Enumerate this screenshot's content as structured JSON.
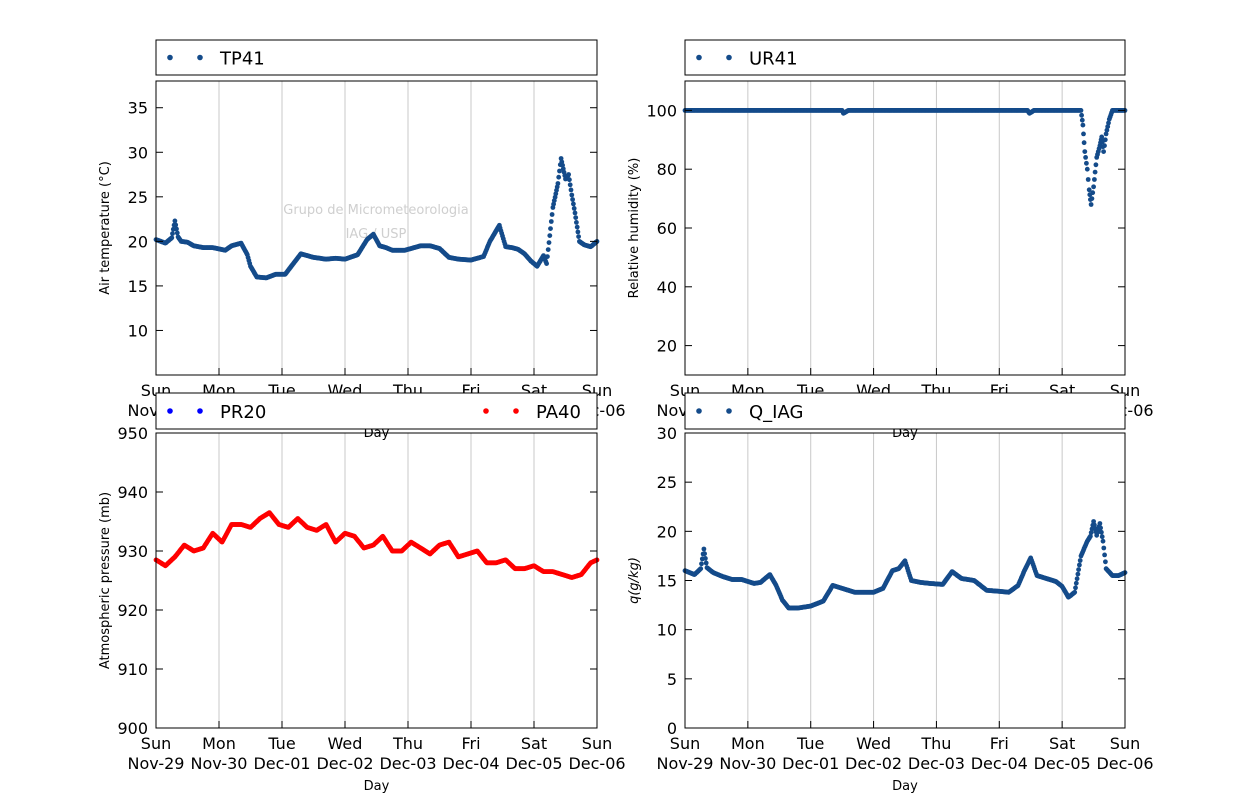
{
  "watermark": {
    "line1": "Grupo de Micrometeorologia",
    "line2": "IAG / USP"
  },
  "colors": {
    "series_blue": "#144b8a",
    "pressure_blue": "#0000ff",
    "pressure_red": "#ff0000",
    "grid": "#c8c8c8"
  },
  "chart_data": [
    {
      "type": "scatter",
      "legend": [
        "TP41"
      ],
      "xlabel": "Day",
      "ylabel": "Air temperature (°C)",
      "xlim": [
        "Nov-29",
        "Dec-06"
      ],
      "ylim": [
        5,
        38
      ],
      "yticks": [
        10,
        15,
        20,
        25,
        30,
        35
      ],
      "xticks_day": [
        "Sun",
        "Mon",
        "Tue",
        "Wed",
        "Thu",
        "Fri",
        "Sat",
        "Sun"
      ],
      "xticks_date": [
        "Nov-29",
        "Nov-30",
        "Dec-01",
        "Dec-02",
        "Dec-03",
        "Dec-04",
        "Dec-05",
        "Dec-06"
      ],
      "grid": "vertical",
      "series": [
        {
          "name": "TP41",
          "color": "#144b8a",
          "x": [
            0,
            0.15,
            0.25,
            0.3,
            0.35,
            0.4,
            0.5,
            0.6,
            0.75,
            0.9,
            1.1,
            1.2,
            1.35,
            1.45,
            1.5,
            1.6,
            1.75,
            1.9,
            2.05,
            2.3,
            2.5,
            2.7,
            2.85,
            3.0,
            3.2,
            3.35,
            3.45,
            3.55,
            3.65,
            3.75,
            3.95,
            4.2,
            4.35,
            4.5,
            4.65,
            4.8,
            5.0,
            5.2,
            5.3,
            5.45,
            5.55,
            5.65,
            5.75,
            5.85,
            5.95,
            6.05,
            6.15,
            6.2,
            6.3,
            6.38,
            6.43,
            6.5,
            6.55,
            6.6,
            6.65,
            6.72,
            6.8,
            6.9,
            7.0
          ],
          "y": [
            20.2,
            19.8,
            20.4,
            22.3,
            20.5,
            20.0,
            19.9,
            19.5,
            19.3,
            19.3,
            19.0,
            19.5,
            19.8,
            18.5,
            17.2,
            16.0,
            15.9,
            16.3,
            16.3,
            18.6,
            18.2,
            18.0,
            18.1,
            18.0,
            18.5,
            20.2,
            20.8,
            19.5,
            19.3,
            19.0,
            19.0,
            19.5,
            19.5,
            19.2,
            18.2,
            18.0,
            17.9,
            18.3,
            20.0,
            21.8,
            19.4,
            19.3,
            19.1,
            18.6,
            17.8,
            17.2,
            18.4,
            17.5,
            23.8,
            26.5,
            29.3,
            27.0,
            27.5,
            25.2,
            23.2,
            20.0,
            19.6,
            19.4,
            20.0
          ]
        }
      ]
    },
    {
      "type": "scatter",
      "legend": [
        "UR41"
      ],
      "xlabel": "Day",
      "ylabel": "Relative humidity (%)",
      "xlim": [
        "Nov-29",
        "Dec-06"
      ],
      "ylim": [
        10,
        110
      ],
      "yticks": [
        20,
        40,
        60,
        80,
        100
      ],
      "xticks_day": [
        "Sun",
        "Mon",
        "Tue",
        "Wed",
        "Thu",
        "Fri",
        "Sat",
        "Sun"
      ],
      "xticks_date": [
        "Nov-29",
        "Nov-30",
        "Dec-01",
        "Dec-02",
        "Dec-03",
        "Dec-04",
        "Dec-05",
        "Dec-06"
      ],
      "grid": "vertical",
      "series": [
        {
          "name": "UR41",
          "color": "#144b8a",
          "x": [
            0,
            1.0,
            2.0,
            2.5,
            2.52,
            2.6,
            3.0,
            4.0,
            5.0,
            5.45,
            5.48,
            5.55,
            6.0,
            6.3,
            6.33,
            6.36,
            6.4,
            6.43,
            6.46,
            6.5,
            6.55,
            6.6,
            6.63,
            6.66,
            6.7,
            6.75,
            6.8,
            7.0
          ],
          "y": [
            100,
            100,
            100,
            100,
            99,
            100,
            100,
            100,
            100,
            100,
            99,
            100,
            100,
            100,
            95,
            86,
            80,
            73,
            68,
            74,
            84,
            88,
            91,
            86,
            92,
            97,
            100,
            100
          ]
        }
      ]
    },
    {
      "type": "scatter",
      "legend": [
        "PR20",
        "PA40"
      ],
      "xlabel": "Day",
      "ylabel": "Atmospheric pressure (mb)",
      "xlim": [
        "Nov-29",
        "Dec-06"
      ],
      "ylim": [
        900,
        950
      ],
      "yticks": [
        900,
        910,
        920,
        930,
        940,
        950
      ],
      "xticks_day": [
        "Sun",
        "Mon",
        "Tue",
        "Wed",
        "Thu",
        "Fri",
        "Sat",
        "Sun"
      ],
      "xticks_date": [
        "Nov-29",
        "Nov-30",
        "Dec-01",
        "Dec-02",
        "Dec-03",
        "Dec-04",
        "Dec-05",
        "Dec-06"
      ],
      "grid": "vertical",
      "series": [
        {
          "name": "PR20",
          "color": "#0000ff",
          "x": [],
          "y": []
        },
        {
          "name": "PA40",
          "color": "#ff0000",
          "x": [
            0,
            0.15,
            0.3,
            0.45,
            0.6,
            0.75,
            0.9,
            1.05,
            1.2,
            1.35,
            1.5,
            1.65,
            1.8,
            1.95,
            2.1,
            2.25,
            2.4,
            2.55,
            2.7,
            2.85,
            3.0,
            3.15,
            3.3,
            3.45,
            3.6,
            3.75,
            3.9,
            4.05,
            4.2,
            4.35,
            4.5,
            4.65,
            4.8,
            4.95,
            5.1,
            5.25,
            5.4,
            5.55,
            5.7,
            5.85,
            6.0,
            6.15,
            6.3,
            6.45,
            6.6,
            6.75,
            6.9,
            7.0
          ],
          "y": [
            928.5,
            927.5,
            929.0,
            931.0,
            930.0,
            930.5,
            933.0,
            931.5,
            934.5,
            934.5,
            934.0,
            935.5,
            936.5,
            934.5,
            934.0,
            935.5,
            934.0,
            933.5,
            934.5,
            931.5,
            933.0,
            932.5,
            930.5,
            931.0,
            932.5,
            930.0,
            930.0,
            931.5,
            930.5,
            929.5,
            931.0,
            931.5,
            929.0,
            929.5,
            930.0,
            928.0,
            928.0,
            928.5,
            927.0,
            927.0,
            927.5,
            926.5,
            926.5,
            926.0,
            925.5,
            926.0,
            928.0,
            928.5
          ]
        }
      ]
    },
    {
      "type": "scatter",
      "legend": [
        "Q_IAG"
      ],
      "xlabel": "Day",
      "ylabel": "q(g/kg)",
      "xlim": [
        "Nov-29",
        "Dec-06"
      ],
      "ylim": [
        0,
        30
      ],
      "yticks": [
        0,
        5,
        10,
        15,
        20,
        25,
        30
      ],
      "xticks_day": [
        "Sun",
        "Mon",
        "Tue",
        "Wed",
        "Thu",
        "Fri",
        "Sat",
        "Sun"
      ],
      "xticks_date": [
        "Nov-29",
        "Nov-30",
        "Dec-01",
        "Dec-02",
        "Dec-03",
        "Dec-04",
        "Dec-05",
        "Dec-06"
      ],
      "grid": "vertical",
      "series": [
        {
          "name": "Q_IAG",
          "color": "#144b8a",
          "x": [
            0,
            0.15,
            0.25,
            0.3,
            0.35,
            0.45,
            0.6,
            0.75,
            0.9,
            1.1,
            1.2,
            1.35,
            1.45,
            1.55,
            1.65,
            1.8,
            2.0,
            2.2,
            2.35,
            2.5,
            2.7,
            2.85,
            3.0,
            3.15,
            3.3,
            3.4,
            3.5,
            3.6,
            3.75,
            3.9,
            4.1,
            4.25,
            4.4,
            4.6,
            4.8,
            5.0,
            5.15,
            5.3,
            5.4,
            5.5,
            5.6,
            5.75,
            5.9,
            6.0,
            6.1,
            6.2,
            6.3,
            6.4,
            6.45,
            6.5,
            6.55,
            6.6,
            6.65,
            6.7,
            6.8,
            6.9,
            7.0
          ],
          "y": [
            16.0,
            15.6,
            16.2,
            18.2,
            16.3,
            15.8,
            15.4,
            15.1,
            15.1,
            14.7,
            14.8,
            15.6,
            14.5,
            13.0,
            12.2,
            12.2,
            12.4,
            12.9,
            14.5,
            14.2,
            13.8,
            13.8,
            13.8,
            14.2,
            16.0,
            16.2,
            17.0,
            15.0,
            14.8,
            14.7,
            14.6,
            15.9,
            15.2,
            15.0,
            14.0,
            13.9,
            13.8,
            14.5,
            16.0,
            17.3,
            15.5,
            15.2,
            14.9,
            14.4,
            13.3,
            13.8,
            17.5,
            19.0,
            19.5,
            21.0,
            19.6,
            20.8,
            19.0,
            16.2,
            15.5,
            15.5,
            15.8
          ]
        }
      ]
    }
  ]
}
